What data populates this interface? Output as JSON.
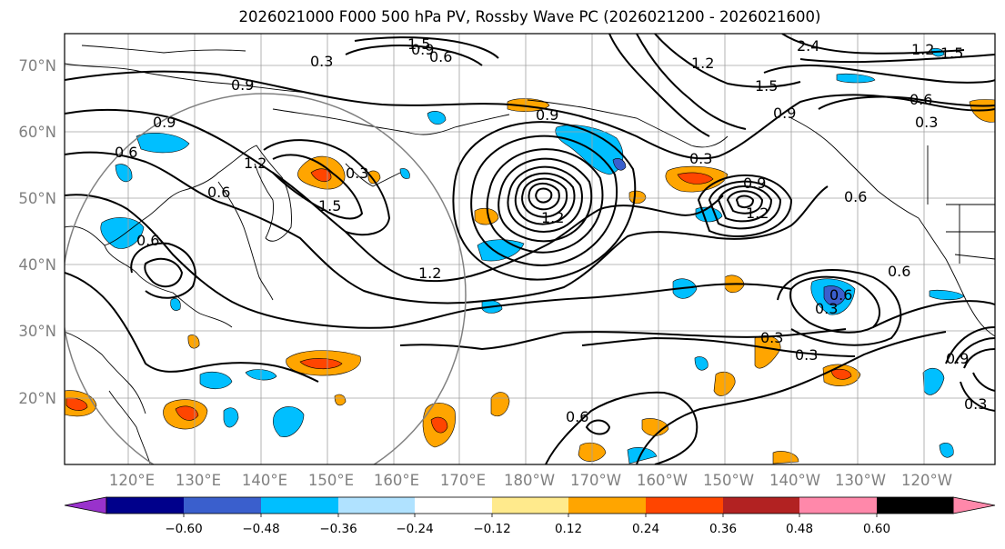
{
  "title": "2026021000 F000 500 hPa PV, Rossby Wave PC (2026021200 - 2026021600)",
  "map": {
    "lat_labels": [
      "70°N",
      "60°N",
      "50°N",
      "40°N",
      "30°N",
      "20°N"
    ],
    "lon_labels": [
      "120°E",
      "130°E",
      "140°E",
      "150°E",
      "160°E",
      "170°E",
      "180°W",
      "170°W",
      "160°W",
      "150°W",
      "140°W",
      "130°W",
      "120°W"
    ],
    "contour_labels": [
      "1.5",
      "0.9",
      "0.6",
      "0.3",
      "0.9",
      "0.9",
      "0.6",
      "1.2",
      "0.9",
      "1.5",
      "2.4",
      "0.9",
      "0.6",
      "1.2",
      "1.2",
      "1.5",
      "0.3",
      "1.2",
      "0.3",
      "1.2",
      "0.6",
      "1.5",
      "0.3",
      "0.9",
      "0.6",
      "0.6",
      "0.6",
      "0.3",
      "0.3",
      "0.6",
      "0.3",
      "0.6",
      "1.2",
      "0.9",
      "0.3"
    ]
  },
  "colorbar": {
    "colors": [
      "#9932cc",
      "#00008b",
      "#3a5fcd",
      "#00bfff",
      "#b0e2ff",
      "#ffffff",
      "#ffea8c",
      "#ffa500",
      "#ff4500",
      "#b22222",
      "#ff88aa"
    ],
    "tick_labels": [
      "−0.60",
      "−0.48",
      "−0.36",
      "−0.24",
      "−0.12",
      "0.12",
      "0.24",
      "0.36",
      "0.48",
      "0.60"
    ]
  }
}
